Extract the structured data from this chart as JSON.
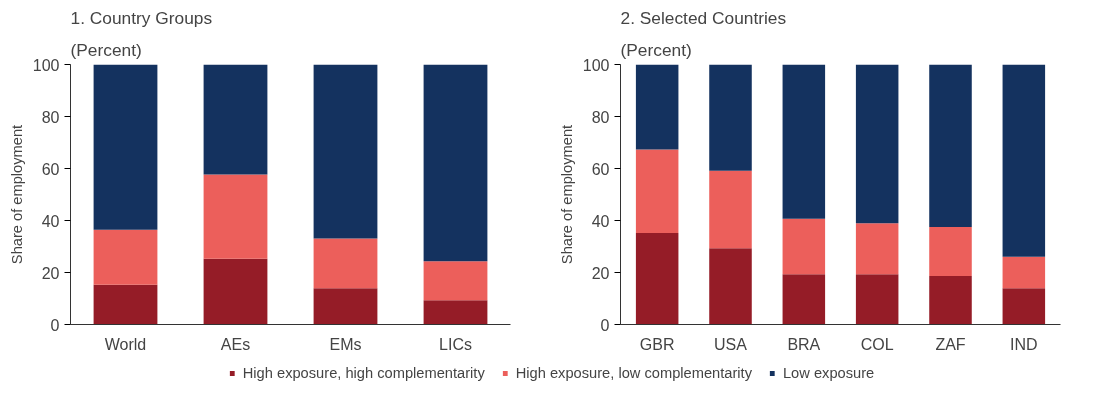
{
  "chart_data": [
    {
      "type": "bar",
      "title": "1. Country Groups",
      "subtitle": "(Percent)",
      "ylabel": "Share of employment",
      "stacked": true,
      "legend": "bottom",
      "grid": false,
      "categories": [
        "World",
        "AEs",
        "EMs",
        "LICs"
      ],
      "ylim": [
        0,
        100
      ],
      "yticks": [
        0,
        20,
        40,
        60,
        80,
        100
      ],
      "series": [
        {
          "name": "High exposure, high complementarity",
          "color": "#951c27",
          "values": [
            15.3,
            25.3,
            13.9,
            9.3
          ]
        },
        {
          "name": "High exposure, low complementarity",
          "color": "#ec5f5b",
          "values": [
            21.1,
            32.4,
            19.2,
            15.0
          ]
        },
        {
          "name": "Low exposure",
          "color": "#14325f",
          "values": [
            63.6,
            42.3,
            66.9,
            75.7
          ]
        }
      ]
    },
    {
      "type": "bar",
      "title": "2. Selected Countries",
      "subtitle": "(Percent)",
      "ylabel": "Share of employment",
      "stacked": true,
      "grid": false,
      "categories": [
        "GBR",
        "USA",
        "BRA",
        "COL",
        "ZAF",
        "IND"
      ],
      "ylim": [
        0,
        100
      ],
      "yticks": [
        0,
        20,
        40,
        60,
        80,
        100
      ],
      "series": [
        {
          "color": "#951c27",
          "values": [
            35.2,
            29.3,
            19.3,
            19.3,
            18.7,
            13.9
          ]
        },
        {
          "color": "#ec5f5b",
          "values": [
            32.1,
            29.8,
            21.4,
            19.6,
            18.8,
            12.2
          ]
        },
        {
          "color": "#14325f",
          "values": [
            32.7,
            40.9,
            59.3,
            61.1,
            62.5,
            73.9
          ]
        }
      ]
    }
  ]
}
